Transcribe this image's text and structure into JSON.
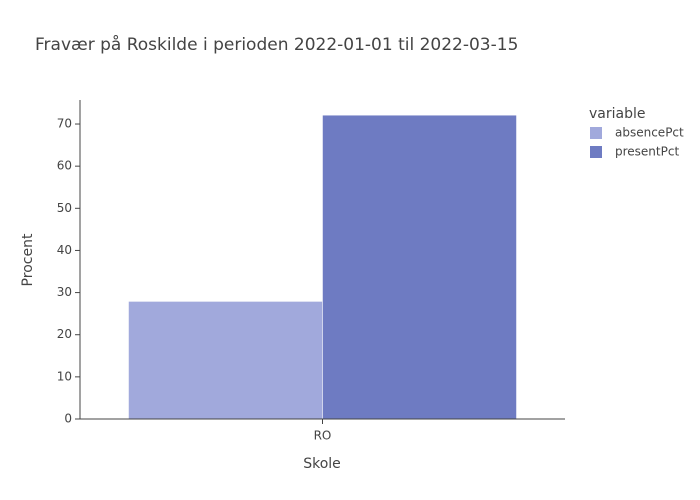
{
  "chart_data": {
    "type": "bar",
    "title": "Fravær på Roskilde i perioden 2022-01-01 til 2022-03-15",
    "x_label": "Skole",
    "y_label": "Procent",
    "legend_title": "variable",
    "categories": [
      "RO"
    ],
    "series": [
      {
        "name": "absencePct",
        "color": "#a1a9dc",
        "values": [
          27.9
        ]
      },
      {
        "name": "presentPct",
        "color": "#6e7bc2",
        "values": [
          72.1
        ]
      }
    ],
    "ylim": [
      0,
      75.7
    ],
    "yticks": [
      0,
      10,
      20,
      30,
      40,
      50,
      60,
      70
    ],
    "grid": false,
    "legend": "right"
  }
}
